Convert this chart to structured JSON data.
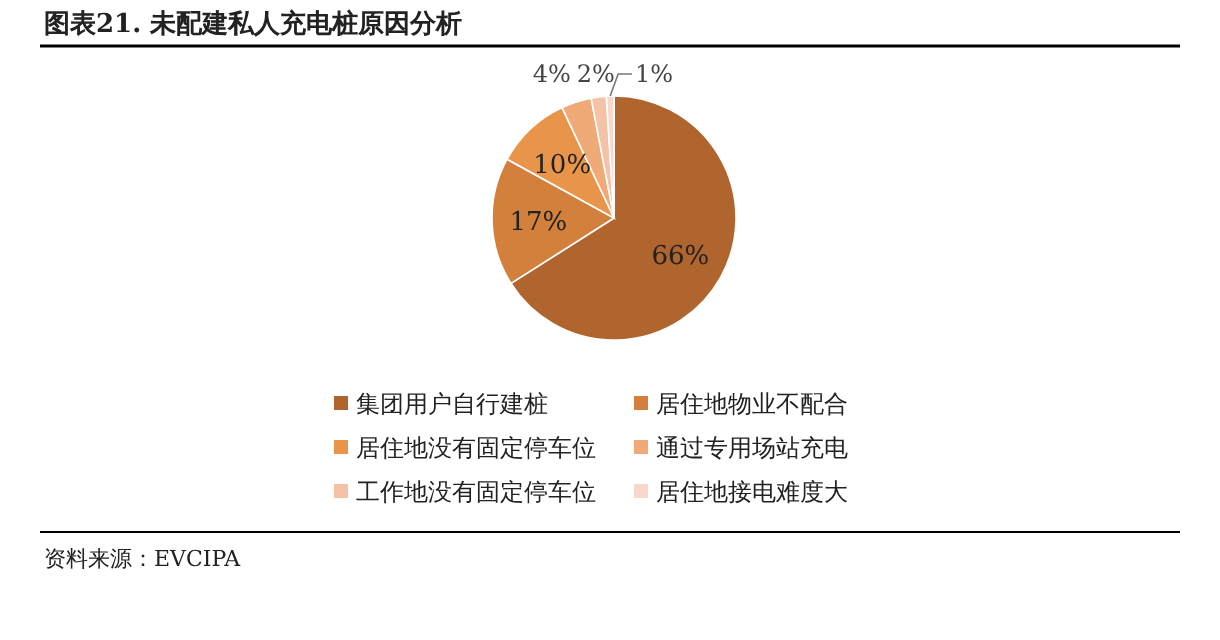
{
  "chart_data": {
    "type": "pie",
    "title": "图表21.  未配建私人充电桩原因分析",
    "categories": [
      "集团用户自行建桩",
      "居住地物业不配合",
      "居住地没有固定停车位",
      "通过专用场站充电",
      "工作地没有固定停车位",
      "居住地接电难度大"
    ],
    "values": [
      66,
      17,
      10,
      4,
      2,
      1
    ],
    "colors": [
      "#b0652e",
      "#d2803c",
      "#e8944a",
      "#f0aa78",
      "#f4c2a6",
      "#f8d8cc"
    ],
    "value_labels": [
      "66%",
      "17%",
      "10%",
      "4%",
      "2%",
      "1%"
    ],
    "legend": "bottom",
    "annotations": [
      "资料来源：EVCIPA"
    ]
  }
}
